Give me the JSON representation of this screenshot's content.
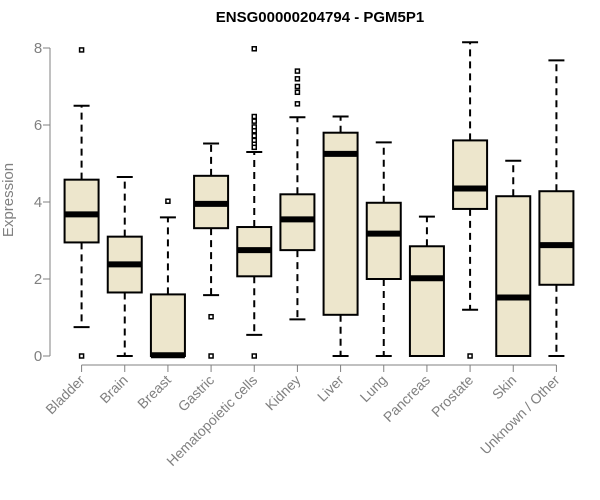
{
  "chart_data": {
    "type": "boxplot",
    "title": "ENSG00000204794 - PGM5P1",
    "ylabel": "Expression",
    "xlabel": "",
    "ylim": [
      0,
      8
    ],
    "yticks": [
      0,
      2,
      4,
      6,
      8
    ],
    "colors": {
      "box_fill": "#ede6cc",
      "stroke": "#000000",
      "axis": "#808080"
    },
    "boxes": [
      {
        "name": "Bladder",
        "whisker_low": 0.75,
        "q1": 2.95,
        "median": 3.68,
        "q3": 4.58,
        "whisker_high": 6.5,
        "outliers": [
          7.95,
          0.0
        ]
      },
      {
        "name": "Brain",
        "whisker_low": 0.0,
        "q1": 1.65,
        "median": 2.38,
        "q3": 3.1,
        "whisker_high": 4.65,
        "outliers": []
      },
      {
        "name": "Breast",
        "whisker_low": 0.0,
        "q1": 0.0,
        "median": 0.02,
        "q3": 1.6,
        "whisker_high": 3.6,
        "outliers": [
          4.02
        ]
      },
      {
        "name": "Gastric",
        "whisker_low": 1.58,
        "q1": 3.32,
        "median": 3.95,
        "q3": 4.68,
        "whisker_high": 5.52,
        "outliers": [
          1.02,
          0.0
        ]
      },
      {
        "name": "Hematopoietic cells",
        "whisker_low": 0.55,
        "q1": 2.07,
        "median": 2.75,
        "q3": 3.35,
        "whisker_high": 5.3,
        "outliers": [
          7.98,
          6.22,
          6.1,
          5.95,
          5.85,
          5.72,
          5.6,
          5.5,
          5.42,
          0.0
        ]
      },
      {
        "name": "Kidney",
        "whisker_low": 0.95,
        "q1": 2.75,
        "median": 3.55,
        "q3": 4.2,
        "whisker_high": 6.2,
        "outliers": [
          7.4,
          7.2,
          7.0,
          6.85,
          6.55
        ]
      },
      {
        "name": "Liver",
        "whisker_low": 0.0,
        "q1": 1.07,
        "median": 5.25,
        "q3": 5.8,
        "whisker_high": 6.22,
        "outliers": []
      },
      {
        "name": "Lung",
        "whisker_low": 0.0,
        "q1": 2.0,
        "median": 3.18,
        "q3": 3.98,
        "whisker_high": 5.55,
        "outliers": []
      },
      {
        "name": "Pancreas",
        "whisker_low": 0.0,
        "q1": 0.0,
        "median": 2.02,
        "q3": 2.85,
        "whisker_high": 3.62,
        "outliers": []
      },
      {
        "name": "Prostate",
        "whisker_low": 1.2,
        "q1": 3.82,
        "median": 4.35,
        "q3": 5.6,
        "whisker_high": 8.15,
        "outliers": [
          0.0
        ]
      },
      {
        "name": "Skin",
        "whisker_low": 0.0,
        "q1": 0.0,
        "median": 1.52,
        "q3": 4.15,
        "whisker_high": 5.07,
        "outliers": []
      },
      {
        "name": "Unknown / Other",
        "whisker_low": 0.0,
        "q1": 1.85,
        "median": 2.88,
        "q3": 4.28,
        "whisker_high": 7.68,
        "outliers": []
      }
    ]
  }
}
